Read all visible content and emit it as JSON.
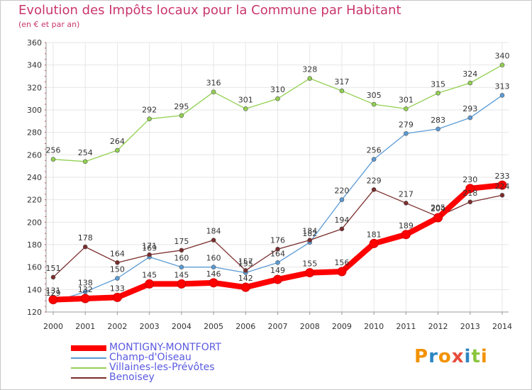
{
  "chart_data": {
    "type": "line",
    "title": "Evolution des Impôts locaux pour la Commune par Habitant",
    "subtitle": "(en € et par an)",
    "x": [
      "2000",
      "2001",
      "2002",
      "2003",
      "2004",
      "2005",
      "2006",
      "2007",
      "2008",
      "2009",
      "2010",
      "2011",
      "2012",
      "2013",
      "2014"
    ],
    "ylim": [
      120,
      360
    ],
    "yticks": [
      120,
      140,
      160,
      180,
      200,
      220,
      240,
      260,
      280,
      300,
      320,
      340,
      360
    ],
    "grid": true,
    "legend_position": "bottom-left",
    "series": [
      {
        "name": "MONTIGNY-MONTFORT",
        "color": "#ff0000",
        "values": [
          131,
          132,
          133,
          145,
          145,
          146,
          142,
          149,
          155,
          156,
          181,
          189,
          204,
          230,
          233
        ]
      },
      {
        "name": "Champ-d'Oiseau",
        "color": "#5b9bd5",
        "values": [
          129,
          138,
          150,
          169,
          160,
          160,
          155,
          164,
          182,
          220,
          256,
          279,
          283,
          293,
          313
        ]
      },
      {
        "name": "Villaines-les-Prévôtes",
        "color": "#92d050",
        "values": [
          256,
          254,
          264,
          292,
          295,
          316,
          301,
          310,
          328,
          317,
          305,
          301,
          315,
          324,
          340
        ]
      },
      {
        "name": "Benoisey",
        "color": "#7b2c2c",
        "values": [
          151,
          178,
          164,
          171,
          175,
          184,
          157,
          176,
          184,
          194,
          229,
          217,
          205,
          218,
          224
        ]
      }
    ]
  },
  "logo": {
    "text": "Proxiti",
    "letter_colors": [
      "#f39200",
      "#2e86c1",
      "#f39200",
      "#e74c3c",
      "#2e86c1",
      "#8cc63f",
      "#f39200"
    ]
  }
}
